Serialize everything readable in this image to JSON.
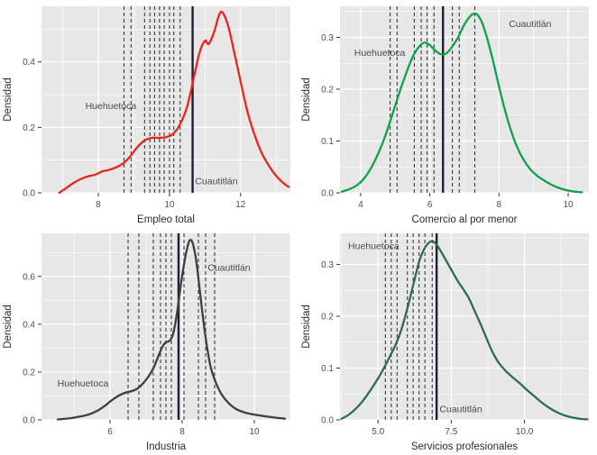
{
  "styles": {
    "panel_bg": "#e7e7e7",
    "grid_color": "#ffffff",
    "dashed_line_color": "#3a3a3a",
    "solid_line_color": "#1d1d35",
    "tick_label_color": "#4d4d4d",
    "axis_title_color": "#2b2b2b",
    "annotation_color": "#4a4a4a"
  },
  "chart_data": [
    {
      "type": "line",
      "id": "empleo-total",
      "title": "",
      "xlabel": "Empleo total",
      "ylabel": "Densidad",
      "color": "#e8251f",
      "xlim": [
        6.4,
        13.4
      ],
      "ylim": [
        0,
        0.57
      ],
      "x_ticks": [
        8,
        10,
        12
      ],
      "x_tick_labels": [
        "8",
        "10",
        "12"
      ],
      "y_ticks": [
        0.0,
        0.2,
        0.4
      ],
      "y_tick_labels": [
        "0.0",
        "0.2",
        "0.4"
      ],
      "grid": true,
      "legend": "none",
      "points": [
        [
          6.9,
          0
        ],
        [
          7.1,
          0.015
        ],
        [
          7.3,
          0.03
        ],
        [
          7.5,
          0.042
        ],
        [
          7.7,
          0.05
        ],
        [
          7.9,
          0.055
        ],
        [
          8.1,
          0.065
        ],
        [
          8.3,
          0.07
        ],
        [
          8.5,
          0.078
        ],
        [
          8.7,
          0.09
        ],
        [
          8.9,
          0.112
        ],
        [
          9.1,
          0.14
        ],
        [
          9.3,
          0.16
        ],
        [
          9.5,
          0.168
        ],
        [
          9.7,
          0.168
        ],
        [
          9.9,
          0.17
        ],
        [
          10.1,
          0.18
        ],
        [
          10.3,
          0.21
        ],
        [
          10.5,
          0.265
        ],
        [
          10.7,
          0.36
        ],
        [
          10.85,
          0.43
        ],
        [
          11.0,
          0.465
        ],
        [
          11.1,
          0.455
        ],
        [
          11.25,
          0.49
        ],
        [
          11.4,
          0.545
        ],
        [
          11.5,
          0.55
        ],
        [
          11.65,
          0.51
        ],
        [
          11.8,
          0.44
        ],
        [
          12.0,
          0.34
        ],
        [
          12.2,
          0.245
        ],
        [
          12.4,
          0.175
        ],
        [
          12.6,
          0.12
        ],
        [
          12.8,
          0.082
        ],
        [
          13.0,
          0.052
        ],
        [
          13.2,
          0.03
        ],
        [
          13.35,
          0.018
        ]
      ],
      "dashed_lines": [
        8.72,
        8.92,
        9.3,
        9.45,
        9.58,
        9.72,
        9.85,
        10.0,
        10.12,
        10.3
      ],
      "solid_line": 10.65,
      "annotations": [
        {
          "text": "Huehuetoca",
          "x": 8.35,
          "y": 0.265,
          "anchor": "middle"
        },
        {
          "text": "Cuautitlán",
          "x": 10.72,
          "y": 0.035,
          "anchor": "start"
        }
      ]
    },
    {
      "type": "line",
      "id": "comercio-al-por-menor",
      "title": "",
      "xlabel": "Comercio al por menor",
      "ylabel": "Densidad",
      "color": "#12a14b",
      "xlim": [
        3.4,
        10.6
      ],
      "ylim": [
        0,
        0.36
      ],
      "x_ticks": [
        4,
        6,
        8,
        10
      ],
      "x_tick_labels": [
        "4",
        "6",
        "8",
        "10"
      ],
      "y_ticks": [
        0.0,
        0.1,
        0.2,
        0.3
      ],
      "y_tick_labels": [
        "0.0",
        "0.1",
        "0.2",
        "0.3"
      ],
      "grid": true,
      "legend": "none",
      "points": [
        [
          3.45,
          0.002
        ],
        [
          3.7,
          0.008
        ],
        [
          3.9,
          0.015
        ],
        [
          4.1,
          0.028
        ],
        [
          4.3,
          0.048
        ],
        [
          4.5,
          0.075
        ],
        [
          4.7,
          0.108
        ],
        [
          4.9,
          0.148
        ],
        [
          5.1,
          0.19
        ],
        [
          5.3,
          0.228
        ],
        [
          5.5,
          0.262
        ],
        [
          5.7,
          0.283
        ],
        [
          5.85,
          0.29
        ],
        [
          6.0,
          0.285
        ],
        [
          6.15,
          0.275
        ],
        [
          6.3,
          0.268
        ],
        [
          6.45,
          0.268
        ],
        [
          6.6,
          0.278
        ],
        [
          6.8,
          0.298
        ],
        [
          7.0,
          0.325
        ],
        [
          7.2,
          0.343
        ],
        [
          7.35,
          0.345
        ],
        [
          7.5,
          0.33
        ],
        [
          7.65,
          0.3
        ],
        [
          7.8,
          0.262
        ],
        [
          7.95,
          0.22
        ],
        [
          8.1,
          0.178
        ],
        [
          8.3,
          0.13
        ],
        [
          8.5,
          0.092
        ],
        [
          8.7,
          0.065
        ],
        [
          8.9,
          0.046
        ],
        [
          9.1,
          0.033
        ],
        [
          9.35,
          0.022
        ],
        [
          9.6,
          0.013
        ],
        [
          9.85,
          0.007
        ],
        [
          10.1,
          0.003
        ],
        [
          10.4,
          0.001
        ]
      ],
      "dashed_lines": [
        4.85,
        5.05,
        5.55,
        5.75,
        5.92,
        6.12,
        6.65,
        6.85,
        7.3
      ],
      "solid_line": 6.38,
      "annotations": [
        {
          "text": "Huehuetoca",
          "x": 4.55,
          "y": 0.27,
          "anchor": "middle"
        },
        {
          "text": "Cuautitlán",
          "x": 8.9,
          "y": 0.325,
          "anchor": "middle"
        }
      ]
    },
    {
      "type": "line",
      "id": "industria",
      "title": "",
      "xlabel": "Industria",
      "ylabel": "Densidad",
      "color": "#3f3f3f",
      "xlim": [
        4.1,
        11.0
      ],
      "ylim": [
        0,
        0.78
      ],
      "x_ticks": [
        6,
        8,
        10
      ],
      "x_tick_labels": [
        "6",
        "8",
        "10"
      ],
      "y_ticks": [
        0.0,
        0.2,
        0.4,
        0.6
      ],
      "y_tick_labels": [
        "0.0",
        "0.2",
        "0.4",
        "0.6"
      ],
      "grid": true,
      "legend": "none",
      "points": [
        [
          4.55,
          0.002
        ],
        [
          4.8,
          0.005
        ],
        [
          5.1,
          0.012
        ],
        [
          5.4,
          0.022
        ],
        [
          5.65,
          0.038
        ],
        [
          5.85,
          0.058
        ],
        [
          6.05,
          0.082
        ],
        [
          6.25,
          0.102
        ],
        [
          6.45,
          0.115
        ],
        [
          6.6,
          0.12
        ],
        [
          6.75,
          0.13
        ],
        [
          6.9,
          0.15
        ],
        [
          7.05,
          0.178
        ],
        [
          7.2,
          0.215
        ],
        [
          7.35,
          0.27
        ],
        [
          7.45,
          0.305
        ],
        [
          7.55,
          0.325
        ],
        [
          7.65,
          0.33
        ],
        [
          7.75,
          0.36
        ],
        [
          7.85,
          0.44
        ],
        [
          7.95,
          0.55
        ],
        [
          8.05,
          0.65
        ],
        [
          8.15,
          0.725
        ],
        [
          8.22,
          0.752
        ],
        [
          8.3,
          0.735
        ],
        [
          8.4,
          0.655
        ],
        [
          8.5,
          0.525
        ],
        [
          8.6,
          0.4
        ],
        [
          8.7,
          0.295
        ],
        [
          8.8,
          0.215
        ],
        [
          8.95,
          0.15
        ],
        [
          9.1,
          0.105
        ],
        [
          9.3,
          0.068
        ],
        [
          9.5,
          0.045
        ],
        [
          9.75,
          0.03
        ],
        [
          10.0,
          0.022
        ],
        [
          10.3,
          0.015
        ],
        [
          10.6,
          0.009
        ],
        [
          10.85,
          0.005
        ]
      ],
      "dashed_lines": [
        6.5,
        6.8,
        7.2,
        7.4,
        7.55,
        7.7,
        8.05,
        8.45,
        8.65,
        8.9
      ],
      "solid_line": 7.9,
      "annotations": [
        {
          "text": "Huehuetoca",
          "x": 5.25,
          "y": 0.15,
          "anchor": "middle"
        },
        {
          "text": "Cuautitlán",
          "x": 9.3,
          "y": 0.635,
          "anchor": "middle"
        }
      ]
    },
    {
      "type": "line",
      "id": "servicios-profesionales",
      "title": "",
      "xlabel": "Servicios profesionales",
      "ylabel": "Densidad",
      "color": "#2f6b4f",
      "xlim": [
        3.7,
        12.2
      ],
      "ylim": [
        0,
        0.36
      ],
      "x_ticks": [
        5.0,
        7.5,
        10.0
      ],
      "x_tick_labels": [
        "5.0",
        "7.5",
        "10.0"
      ],
      "y_ticks": [
        0.0,
        0.1,
        0.2,
        0.3
      ],
      "y_tick_labels": [
        "0.0",
        "0.1",
        "0.2",
        "0.3"
      ],
      "grid": true,
      "legend": "none",
      "points": [
        [
          3.75,
          0.002
        ],
        [
          4.0,
          0.01
        ],
        [
          4.25,
          0.022
        ],
        [
          4.5,
          0.038
        ],
        [
          4.75,
          0.058
        ],
        [
          5.0,
          0.08
        ],
        [
          5.2,
          0.1
        ],
        [
          5.4,
          0.122
        ],
        [
          5.6,
          0.145
        ],
        [
          5.8,
          0.175
        ],
        [
          6.0,
          0.215
        ],
        [
          6.2,
          0.26
        ],
        [
          6.4,
          0.305
        ],
        [
          6.55,
          0.327
        ],
        [
          6.7,
          0.34
        ],
        [
          6.85,
          0.345
        ],
        [
          7.0,
          0.338
        ],
        [
          7.15,
          0.325
        ],
        [
          7.3,
          0.31
        ],
        [
          7.5,
          0.29
        ],
        [
          7.7,
          0.27
        ],
        [
          7.9,
          0.253
        ],
        [
          8.1,
          0.235
        ],
        [
          8.3,
          0.21
        ],
        [
          8.5,
          0.185
        ],
        [
          8.7,
          0.158
        ],
        [
          8.9,
          0.132
        ],
        [
          9.1,
          0.112
        ],
        [
          9.35,
          0.095
        ],
        [
          9.6,
          0.082
        ],
        [
          9.85,
          0.07
        ],
        [
          10.1,
          0.057
        ],
        [
          10.35,
          0.045
        ],
        [
          10.6,
          0.033
        ],
        [
          10.85,
          0.023
        ],
        [
          11.1,
          0.015
        ],
        [
          11.35,
          0.009
        ],
        [
          11.6,
          0.005
        ],
        [
          11.9,
          0.002
        ],
        [
          12.15,
          0.001
        ]
      ],
      "dashed_lines": [
        5.25,
        5.45,
        5.65,
        6.0,
        6.2,
        6.4,
        6.6,
        6.85
      ],
      "solid_line": 7.0,
      "annotations": [
        {
          "text": "Huehuetoca",
          "x": 4.85,
          "y": 0.335,
          "anchor": "middle"
        },
        {
          "text": "Cuautitlán",
          "x": 7.1,
          "y": 0.02,
          "anchor": "start"
        }
      ]
    }
  ]
}
